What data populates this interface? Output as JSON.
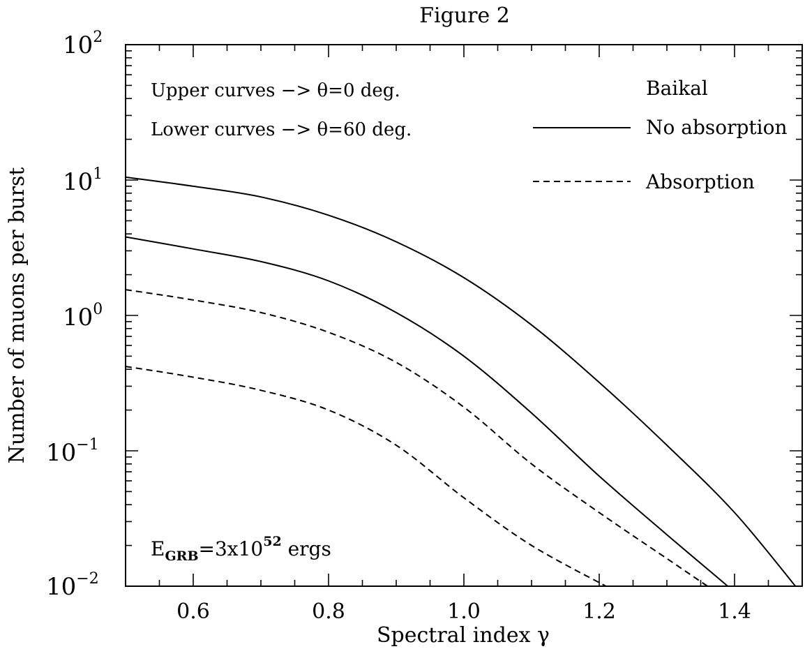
{
  "chart_data": {
    "type": "line",
    "title": "Figure 2",
    "xlabel": "Spectral index γ",
    "ylabel": "Number of muons per burst",
    "xlim": [
      0.5,
      1.5
    ],
    "ylim": [
      0.01,
      100
    ],
    "yscale": "log",
    "x_ticks": [
      "0.6",
      "0.8",
      "1.0",
      "1.2",
      "1.4"
    ],
    "y_ticks": [
      {
        "base": "10",
        "exp": "2"
      },
      {
        "base": "10",
        "exp": "1"
      },
      {
        "base": "10",
        "exp": "0"
      },
      {
        "base": "10",
        "exp": "−1"
      },
      {
        "base": "10",
        "exp": "−2"
      }
    ],
    "annotations": {
      "upper": "Upper curves −> θ=0 deg.",
      "lower": "Lower curves −> θ=60 deg.",
      "energy_prefix": "E",
      "energy_sub": "GRB",
      "energy_mid": "=3x10",
      "energy_sup": "52",
      "energy_suffix": " ergs"
    },
    "legend": {
      "title": "Baikal",
      "placement": "top-right",
      "entries": [
        {
          "label": "No absorption",
          "style": "solid"
        },
        {
          "label": "Absorption",
          "style": "dashed"
        }
      ]
    },
    "series": [
      {
        "style": "solid",
        "x": [
          0.5,
          0.6,
          0.7,
          0.8,
          0.9,
          1.0,
          1.1,
          1.2,
          1.3,
          1.4,
          1.49
        ],
        "y": [
          10.5,
          9.0,
          7.5,
          5.5,
          3.5,
          1.9,
          0.85,
          0.32,
          0.11,
          0.035,
          0.01
        ]
      },
      {
        "style": "solid",
        "x": [
          0.5,
          0.6,
          0.7,
          0.8,
          0.9,
          1.0,
          1.1,
          1.2,
          1.3,
          1.39
        ],
        "y": [
          3.8,
          3.1,
          2.5,
          1.8,
          1.05,
          0.5,
          0.19,
          0.065,
          0.024,
          0.01
        ]
      },
      {
        "style": "dashed",
        "x": [
          0.5,
          0.6,
          0.7,
          0.8,
          0.9,
          1.0,
          1.1,
          1.2,
          1.3,
          1.36
        ],
        "y": [
          1.55,
          1.3,
          1.05,
          0.75,
          0.45,
          0.21,
          0.08,
          0.035,
          0.016,
          0.01
        ]
      },
      {
        "style": "dashed",
        "x": [
          0.5,
          0.6,
          0.7,
          0.8,
          0.9,
          1.0,
          1.1,
          1.21
        ],
        "y": [
          0.42,
          0.35,
          0.28,
          0.2,
          0.11,
          0.045,
          0.02,
          0.01
        ]
      }
    ]
  }
}
